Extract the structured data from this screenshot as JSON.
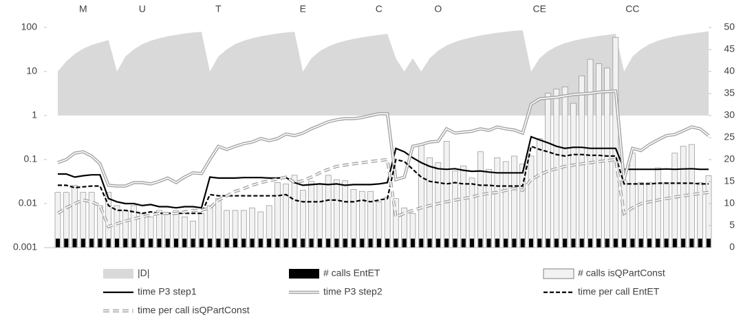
{
  "chart_data": {
    "type": "combo",
    "categories": [
      null,
      null,
      null,
      "M",
      null,
      null,
      null,
      null,
      null,
      null,
      "U",
      null,
      null,
      null,
      null,
      null,
      null,
      null,
      null,
      "T",
      null,
      null,
      null,
      null,
      null,
      null,
      null,
      null,
      null,
      "E",
      null,
      null,
      null,
      null,
      null,
      null,
      null,
      null,
      "C",
      null,
      null,
      null,
      null,
      null,
      null,
      "O",
      null,
      null,
      null,
      null,
      null,
      null,
      null,
      null,
      null,
      null,
      null,
      "CE",
      null,
      null,
      null,
      null,
      null,
      null,
      null,
      null,
      null,
      null,
      "CC",
      null,
      null,
      null,
      null,
      null,
      null,
      null,
      null,
      null
    ],
    "log_y": true,
    "ylim": [
      0.001,
      100
    ],
    "yticks": [
      0.001,
      0.01,
      0.1,
      1,
      10,
      100
    ],
    "y2lim": [
      0,
      50
    ],
    "y2ticks": [
      0,
      5,
      10,
      15,
      20,
      25,
      30,
      35,
      40,
      45,
      50
    ],
    "legend": "bottom",
    "series": [
      {
        "name": "|D|",
        "type": "area",
        "color": "#d9d9d9",
        "values": [
          10,
          17,
          25,
          33,
          40,
          46,
          52,
          10,
          22,
          32,
          42,
          50,
          57,
          63,
          68,
          73,
          77,
          80,
          10,
          22,
          32,
          42,
          50,
          57,
          63,
          68,
          73,
          77,
          80,
          10,
          20,
          29,
          37,
          44,
          50,
          55,
          60,
          64,
          68,
          72,
          20,
          10,
          20,
          10,
          20,
          30,
          39,
          47,
          54,
          60,
          66,
          71,
          76,
          80,
          84,
          87,
          10,
          20,
          29,
          37,
          44,
          50,
          55,
          60,
          64,
          68,
          72,
          10,
          22,
          32,
          42,
          50,
          57,
          63,
          68,
          73,
          77,
          82
        ]
      },
      {
        "name": "# calls EntET",
        "type": "bar",
        "color": "#000000",
        "values": [
          0.0016,
          0.0016,
          0.0016,
          0.0016,
          0.0016,
          0.0016,
          0.0016,
          0.0016,
          0.0016,
          0.0016,
          0.0016,
          0.0016,
          0.0016,
          0.0016,
          0.0016,
          0.0016,
          0.0016,
          0.0016,
          0.0016,
          0.0016,
          0.0016,
          0.0016,
          0.0016,
          0.0016,
          0.0016,
          0.0016,
          0.0016,
          0.0016,
          0.0016,
          0.0016,
          0.0016,
          0.0016,
          0.0016,
          0.0016,
          0.0016,
          0.0016,
          0.0016,
          0.0016,
          0.0016,
          0.0016,
          0.0016,
          0.0016,
          0.0016,
          0.0016,
          0.0016,
          0.0016,
          0.0016,
          0.0016,
          0.0016,
          0.0016,
          0.0016,
          0.0016,
          0.0016,
          0.0016,
          0.0016,
          0.0016,
          0.0016,
          0.0016,
          0.0016,
          0.0016,
          0.0016,
          0.0016,
          0.0016,
          0.0016,
          0.0016,
          0.0016,
          0.0016,
          0.0016,
          0.0016,
          0.0016,
          0.0016,
          0.0016,
          0.0016,
          0.0016,
          0.0016,
          0.0016,
          0.0016,
          0.0016
        ]
      },
      {
        "name": "# calls isQPartConst",
        "type": "bar",
        "color": "#f2f2f2",
        "values": [
          0.018,
          0.018,
          0.026,
          0.018,
          0.018,
          0.009,
          0.018,
          0.009,
          0.007,
          0.009,
          0.006,
          0.005,
          0.007,
          0.006,
          0.007,
          0.005,
          0.004,
          0.006,
          0.009,
          0.013,
          0.007,
          0.007,
          0.007,
          0.008,
          0.0065,
          0.009,
          0.03,
          0.028,
          0.044,
          0.02,
          0.032,
          0.028,
          0.044,
          0.035,
          0.033,
          0.021,
          0.019,
          0.019,
          0.011,
          0.014,
          0.013,
          0.008,
          0.006,
          0.21,
          0.11,
          0.085,
          0.26,
          0.055,
          0.072,
          0.038,
          0.15,
          0.06,
          0.11,
          0.09,
          0.12,
          0.08,
          0.12,
          0.3,
          3.2,
          4,
          4.5,
          1.9,
          8,
          19,
          15,
          12,
          60,
          0.034,
          0.14,
          0.03,
          0.03,
          0.065,
          0.03,
          0.14,
          0.2,
          0.22,
          0.03,
          0.043
        ]
      },
      {
        "name": "time P3 step1",
        "type": "line",
        "color": "#000000",
        "style": "solid",
        "values": [
          0.047,
          0.047,
          0.04,
          0.043,
          0.045,
          0.045,
          0.013,
          0.011,
          0.01,
          0.01,
          0.009,
          0.0095,
          0.0085,
          0.0085,
          0.008,
          0.0085,
          0.0085,
          0.008,
          0.04,
          0.038,
          0.038,
          0.038,
          0.039,
          0.039,
          0.039,
          0.038,
          0.038,
          0.039,
          0.03,
          0.026,
          0.027,
          0.028,
          0.027,
          0.028,
          0.026,
          0.027,
          0.027,
          0.027,
          0.028,
          0.03,
          0.18,
          0.15,
          0.11,
          0.085,
          0.07,
          0.062,
          0.06,
          0.062,
          0.057,
          0.054,
          0.055,
          0.052,
          0.05,
          0.05,
          0.05,
          0.05,
          0.33,
          0.28,
          0.24,
          0.2,
          0.18,
          0.19,
          0.19,
          0.18,
          0.18,
          0.18,
          0.18,
          0.06,
          0.06,
          0.06,
          0.06,
          0.06,
          0.061,
          0.06,
          0.061,
          0.062,
          0.06,
          0.06
        ]
      },
      {
        "name": "time P3 step2",
        "type": "line",
        "color": "#a6a6a6",
        "style": "double",
        "values": [
          0.085,
          0.1,
          0.14,
          0.15,
          0.12,
          0.08,
          0.026,
          0.025,
          0.025,
          0.03,
          0.03,
          0.028,
          0.032,
          0.038,
          0.03,
          0.04,
          0.05,
          0.048,
          0.1,
          0.2,
          0.17,
          0.2,
          0.23,
          0.25,
          0.3,
          0.27,
          0.3,
          0.38,
          0.35,
          0.4,
          0.5,
          0.6,
          0.72,
          0.8,
          0.85,
          0.85,
          0.9,
          1.0,
          1.1,
          1.1,
          0.035,
          0.04,
          0.2,
          0.22,
          0.25,
          0.26,
          0.5,
          0.4,
          0.42,
          0.44,
          0.5,
          0.46,
          0.55,
          0.5,
          0.47,
          0.4,
          1.8,
          2.4,
          2.5,
          2.6,
          2.8,
          3,
          3.1,
          3.2,
          3.4,
          3.5,
          3.6,
          0.035,
          0.18,
          0.16,
          0.22,
          0.28,
          0.35,
          0.37,
          0.45,
          0.55,
          0.5,
          0.35
        ]
      },
      {
        "name": "time per call EntET",
        "type": "line",
        "color": "#000000",
        "style": "dashed",
        "values": [
          0.026,
          0.026,
          0.023,
          0.024,
          0.025,
          0.025,
          0.009,
          0.007,
          0.007,
          0.0065,
          0.006,
          0.0065,
          0.006,
          0.006,
          0.006,
          0.006,
          0.006,
          0.006,
          0.016,
          0.015,
          0.015,
          0.015,
          0.015,
          0.015,
          0.015,
          0.015,
          0.015,
          0.016,
          0.012,
          0.011,
          0.011,
          0.011,
          0.012,
          0.012,
          0.011,
          0.011,
          0.012,
          0.011,
          0.012,
          0.013,
          0.1,
          0.09,
          0.06,
          0.04,
          0.032,
          0.03,
          0.028,
          0.03,
          0.028,
          0.028,
          0.026,
          0.026,
          0.025,
          0.025,
          0.025,
          0.025,
          0.2,
          0.17,
          0.15,
          0.13,
          0.12,
          0.13,
          0.13,
          0.125,
          0.125,
          0.12,
          0.12,
          0.028,
          0.028,
          0.028,
          0.028,
          0.029,
          0.029,
          0.029,
          0.029,
          0.029,
          0.028,
          0.028
        ]
      },
      {
        "name": "time per call isQPartConst",
        "type": "line",
        "color": "#a6a6a6",
        "style": "double-dashed",
        "values": [
          0.006,
          0.008,
          0.01,
          0.012,
          0.011,
          0.009,
          0.003,
          0.0035,
          0.004,
          0.0045,
          0.005,
          0.0055,
          0.006,
          0.006,
          0.006,
          0.0065,
          0.007,
          0.007,
          0.008,
          0.012,
          0.015,
          0.019,
          0.022,
          0.026,
          0.03,
          0.033,
          0.036,
          0.04,
          0.03,
          0.033,
          0.04,
          0.05,
          0.06,
          0.07,
          0.075,
          0.08,
          0.085,
          0.09,
          0.095,
          0.1,
          0.005,
          0.006,
          0.007,
          0.008,
          0.009,
          0.01,
          0.011,
          0.012,
          0.013,
          0.014,
          0.016,
          0.017,
          0.018,
          0.02,
          0.022,
          0.02,
          0.035,
          0.045,
          0.055,
          0.062,
          0.07,
          0.075,
          0.08,
          0.085,
          0.09,
          0.095,
          0.1,
          0.006,
          0.008,
          0.01,
          0.011,
          0.012,
          0.013,
          0.014,
          0.015,
          0.016,
          0.017,
          0.018
        ]
      }
    ]
  }
}
